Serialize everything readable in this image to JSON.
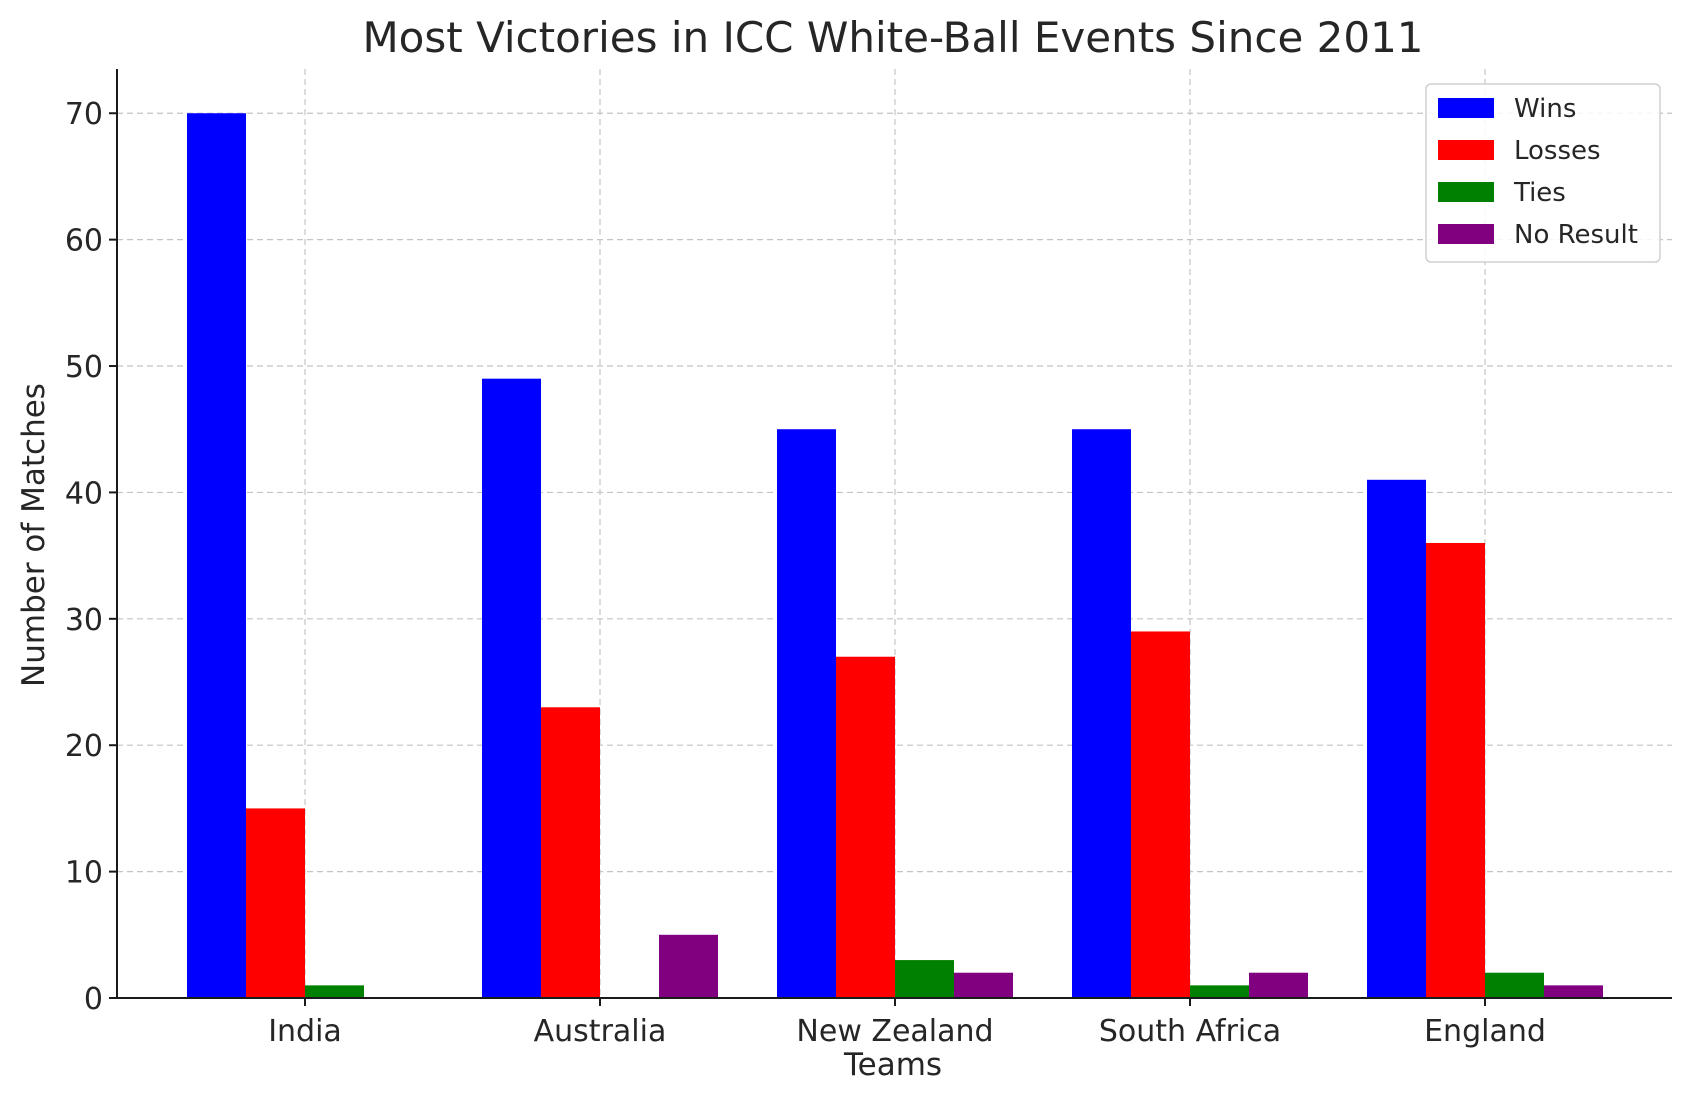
{
  "chart_data": {
    "type": "bar",
    "title": "Most Victories in ICC White-Ball Events Since 2011",
    "xlabel": "Teams",
    "ylabel": "Number of Matches",
    "categories": [
      "India",
      "Australia",
      "New Zealand",
      "South Africa",
      "England"
    ],
    "series": [
      {
        "name": "Wins",
        "color": "#0000ff",
        "values": [
          70,
          49,
          45,
          45,
          41
        ]
      },
      {
        "name": "Losses",
        "color": "#ff0000",
        "values": [
          15,
          23,
          27,
          29,
          36
        ]
      },
      {
        "name": "Ties",
        "color": "#008000",
        "values": [
          1,
          0,
          3,
          1,
          2
        ]
      },
      {
        "name": "No Result",
        "color": "#800080",
        "values": [
          0,
          5,
          2,
          2,
          1
        ]
      }
    ],
    "ylim": [
      0,
      73.5
    ],
    "yticks": [
      "0",
      "10",
      "20",
      "30",
      "40",
      "50",
      "60",
      "70"
    ],
    "grid": true,
    "legend": "top-right"
  }
}
